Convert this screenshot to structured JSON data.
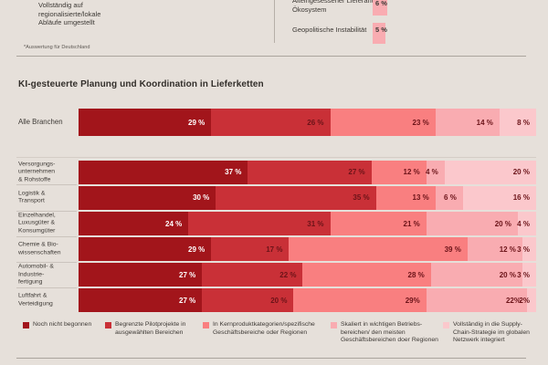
{
  "page": {
    "background": "#E6E0DA",
    "text_color": "#3D3935"
  },
  "top_remnant": {
    "legend_item_label": "Vollständig auf\nregionalisierte/lokale\nAbläufe umgestellt",
    "rows": [
      {
        "label": "Alteingesessener Lieferant\nÖkosystem",
        "value_label": "6 %",
        "value": 6
      },
      {
        "label": "Geopolitische Instabilität",
        "value_label": "5 %",
        "value": 5
      }
    ],
    "bar_color": "#F9ACB1",
    "footnote": "*Auswertung für Deutschland"
  },
  "chart_data": {
    "type": "bar",
    "variant": "horizontal-stacked",
    "title": "KI-gesteuerte Planung und Koordination in Lieferketten",
    "unit": "%",
    "xlim": [
      0,
      100
    ],
    "axis_visible": false,
    "grid": false,
    "legend_position": "bottom",
    "value_label_colors": {
      "on_dark": "#FFFFFF",
      "on_light": "#6B1318"
    },
    "series_legend": [
      {
        "label": "Noch nicht begonnen",
        "color": "#A2151B"
      },
      {
        "label": "Begrenzte Pilotprojekte in\nausgewählten Bereichen",
        "color": "#C93037"
      },
      {
        "label": "In Kernproduktkategorien/spezifische\nGeschäftsbereiche oder Regionen",
        "color": "#F97F80"
      },
      {
        "label": "Skaliert in wichtigen Betriebs-\nbereichen/ den meisten\nGeschäftsbereichen doer Regionen",
        "color": "#F9ACB1"
      },
      {
        "label": "Vollständig in die Supply-\nChain-Strategie im globalen\nNetzwerk integriert",
        "color": "#FBC8CC"
      }
    ],
    "overall_row": {
      "category": "Alle Branchen",
      "values": [
        29,
        26,
        23,
        14,
        8
      ],
      "value_labels": [
        "29 %",
        "26 %",
        "23 %",
        "14 %",
        "8 %"
      ]
    },
    "rows": [
      {
        "category": "Versorgungs-\nunternehmen\n& Rohstoffe",
        "values": [
          37,
          27,
          12,
          4,
          20
        ],
        "value_labels": [
          "37 %",
          "27 %",
          "12 %",
          "4 %",
          "20 %"
        ]
      },
      {
        "category": "Logistik &\nTransport",
        "values": [
          30,
          35,
          13,
          6,
          16
        ],
        "value_labels": [
          "30 %",
          "35 %",
          "13 %",
          "6 %",
          "16 %"
        ]
      },
      {
        "category": "Einzelhandel,\nLuxusgüter &\nKonsumgüter",
        "values": [
          24,
          31,
          21,
          20,
          4
        ],
        "value_labels": [
          "24 %",
          "31 %",
          "21 %",
          "20 %",
          "4 %"
        ]
      },
      {
        "category": "Chemie & Bio-\nwissenschaften",
        "values": [
          29,
          17,
          39,
          12,
          3
        ],
        "value_labels": [
          "29 %",
          "17 %",
          "39 %",
          "12 %",
          "3 %"
        ]
      },
      {
        "category": "Automobil- &\nIndustrie-\nfertigung",
        "values": [
          27,
          22,
          28,
          20,
          3
        ],
        "value_labels": [
          "27 %",
          "22 %",
          "28 %",
          "20 %",
          "3 %"
        ]
      },
      {
        "category": "Luftfahrt &\nVerteidigung",
        "values": [
          27,
          20,
          29,
          22,
          2
        ],
        "value_labels": [
          "27 %",
          "20 %",
          "29%",
          "22%",
          "2%"
        ]
      }
    ]
  }
}
